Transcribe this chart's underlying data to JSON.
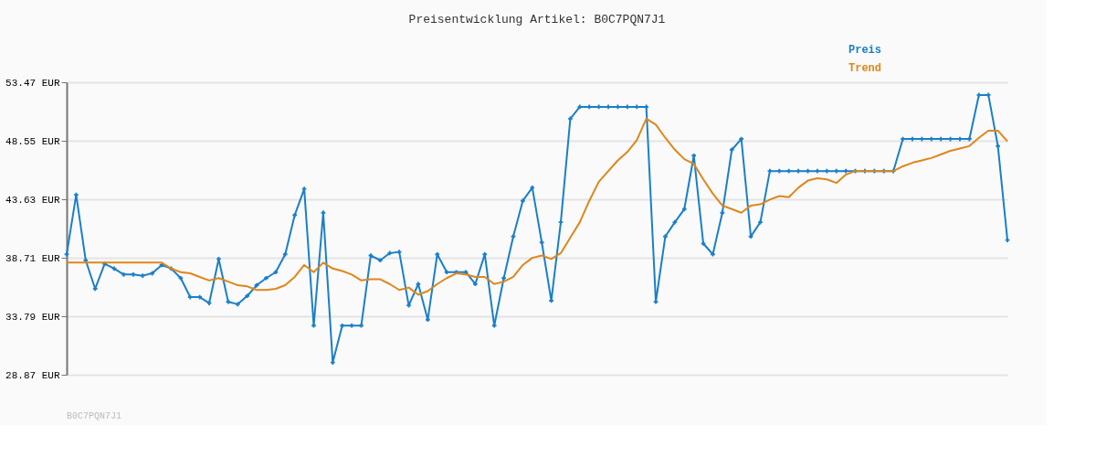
{
  "chart_data": {
    "type": "line",
    "title": "Preisentwicklung Artikel: B0C7PQN7J1",
    "categories": [
      null,
      null,
      null,
      null,
      null,
      null,
      null,
      null,
      null,
      null,
      null,
      null,
      null,
      null,
      null,
      null,
      null,
      null,
      null,
      null,
      null,
      null,
      null,
      null,
      null,
      null,
      null,
      null,
      null,
      null,
      null,
      null,
      null,
      null,
      null,
      null,
      null,
      null,
      null,
      null,
      null,
      null,
      null,
      null,
      null,
      null,
      null,
      null,
      null,
      null,
      null,
      null,
      null,
      null,
      null,
      null,
      null,
      null,
      null,
      null,
      null,
      null,
      null,
      null,
      null,
      null,
      null,
      null,
      null,
      null,
      null,
      null,
      null,
      null,
      null,
      null,
      null,
      null,
      null,
      null,
      null,
      null,
      null,
      null,
      null,
      null,
      null,
      null,
      null,
      null,
      null,
      null,
      null,
      null,
      null,
      null,
      null,
      null,
      null,
      null
    ],
    "series": [
      {
        "name": "Preis",
        "color": "#1a7fc9",
        "marker": "cross",
        "values": [
          39.0,
          44.0,
          38.5,
          36.1,
          38.2,
          37.8,
          37.3,
          37.3,
          37.2,
          37.4,
          38.1,
          37.8,
          37.0,
          35.4,
          35.4,
          34.9,
          38.6,
          35.0,
          34.8,
          35.5,
          36.4,
          37.0,
          37.5,
          39.0,
          42.3,
          44.5,
          33.0,
          42.5,
          29.9,
          33.0,
          33.0,
          33.0,
          38.9,
          38.5,
          39.1,
          39.2,
          34.7,
          36.5,
          33.5,
          39.0,
          37.5,
          37.5,
          37.5,
          36.5,
          39.0,
          33.0,
          37.0,
          40.5,
          43.5,
          44.6,
          40.0,
          35.1,
          41.7,
          50.4,
          51.4,
          51.4,
          51.4,
          51.4,
          51.4,
          51.4,
          51.4,
          51.4,
          35.0,
          40.5,
          41.7,
          42.8,
          47.3,
          39.9,
          39.0,
          42.5,
          47.8,
          48.7,
          40.5,
          41.7,
          46.0,
          46.0,
          46.0,
          46.0,
          46.0,
          46.0,
          46.0,
          46.0,
          46.0,
          46.0,
          46.0,
          46.0,
          46.0,
          46.0,
          48.7,
          48.7,
          48.7,
          48.7,
          48.7,
          48.7,
          48.7,
          48.7,
          52.4,
          52.4,
          48.1,
          40.2
        ]
      },
      {
        "name": "Trend",
        "color": "#e0861a",
        "marker": "none",
        "values": [
          38.3,
          38.3,
          38.3,
          38.3,
          38.3,
          38.3,
          38.3,
          38.3,
          38.3,
          38.3,
          38.3,
          37.8,
          37.5,
          37.4,
          37.1,
          36.8,
          37.0,
          36.7,
          36.4,
          36.3,
          36.0,
          36.0,
          36.1,
          36.4,
          37.1,
          38.1,
          37.5,
          38.3,
          37.8,
          37.6,
          37.3,
          36.8,
          36.9,
          36.9,
          36.5,
          36.0,
          36.2,
          35.6,
          35.9,
          36.5,
          37.0,
          37.4,
          37.3,
          37.1,
          37.1,
          36.5,
          36.7,
          37.1,
          38.1,
          38.7,
          38.9,
          38.6,
          39.1,
          40.4,
          41.7,
          43.5,
          45.1,
          46.0,
          46.9,
          47.6,
          48.6,
          50.4,
          49.9,
          48.8,
          47.8,
          47.0,
          46.6,
          45.3,
          44.1,
          43.1,
          42.8,
          42.5,
          43.1,
          43.2,
          43.6,
          43.9,
          43.8,
          44.6,
          45.2,
          45.4,
          45.3,
          45.0,
          45.7,
          46.0,
          46.0,
          46.0,
          46.0,
          46.0,
          46.4,
          46.7,
          46.9,
          47.1,
          47.4,
          47.7,
          47.9,
          48.1,
          48.8,
          49.4,
          49.4,
          48.5
        ]
      }
    ],
    "ylim": [
      28.87,
      53.47
    ],
    "yticks": [
      {
        "value": 28.87,
        "label": "28.87 EUR"
      },
      {
        "value": 33.79,
        "label": "33.79 EUR"
      },
      {
        "value": 38.71,
        "label": "38.71 EUR"
      },
      {
        "value": 43.63,
        "label": "43.63 EUR"
      },
      {
        "value": 48.55,
        "label": "48.55 EUR"
      },
      {
        "value": 53.47,
        "label": "53.47 EUR"
      }
    ],
    "grid": "y",
    "legend": "top right",
    "tick_labels": "y",
    "line_style": "solid",
    "annotations": [
      "B0C7PQN7J1"
    ]
  }
}
